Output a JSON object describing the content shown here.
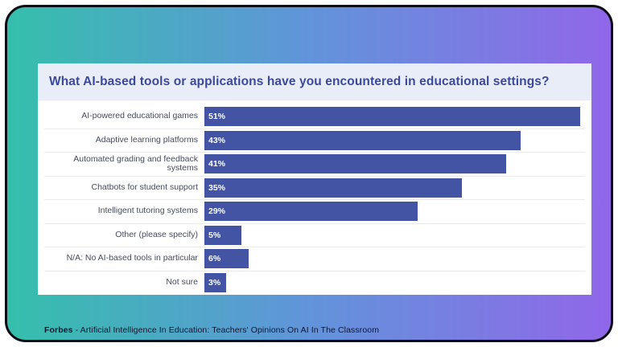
{
  "card": {
    "gradient_left": "#35bfac",
    "gradient_mid": "#6194da",
    "gradient_right": "#9067e9",
    "border_color": "#0d0d15",
    "panel_background": "#ffffff",
    "title_strip_background": "#e9edf7"
  },
  "chart_data": {
    "type": "bar",
    "orientation": "horizontal",
    "title": "What AI-based tools or applications have you encountered in educational settings?",
    "categories": [
      "AI-powered educational games",
      "Adaptive learning platforms",
      "Automated grading and feedback systems",
      "Chatbots for student support",
      "Intelligent tutoring systems",
      "Other (please specify)",
      "N/A: No AI-based tools in particular",
      "Not sure"
    ],
    "values": [
      51,
      43,
      41,
      35,
      29,
      5,
      6,
      3
    ],
    "value_labels": [
      "51%",
      "43%",
      "41%",
      "35%",
      "29%",
      "5%",
      "6%",
      "3%"
    ],
    "xlim": [
      0,
      51.7
    ],
    "bar_color": "#4254a3",
    "value_label_color": "#ffffff",
    "category_label_color": "#474b5e",
    "title_color": "#3c4a9c",
    "grid": false,
    "legend": false
  },
  "footer": {
    "source": "Forbes",
    "separator": " - ",
    "text": "Artificial Intelligence In Education: Teachers' Opinions On AI In The Classroom"
  }
}
